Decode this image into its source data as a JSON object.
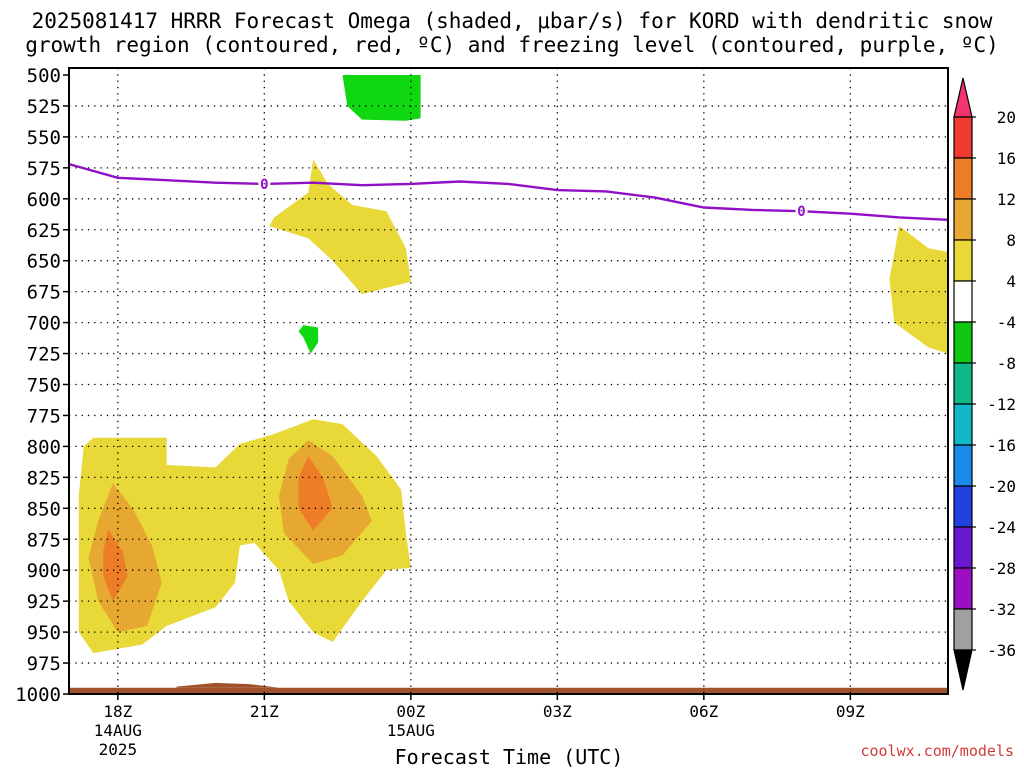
{
  "chart_data": {
    "type": "heatmap",
    "title_line1": "2025081417 HRRR Forecast Omega (shaded, μbar/s) for KORD with dendritic snow",
    "title_line2": "growth region (contoured, red, ºC) and freezing level (contoured, purple, ºC)",
    "xlabel": "Forecast Time (UTC)",
    "ylabel": "",
    "x_ticks": [
      {
        "label": "18Z",
        "sub1": "14AUG",
        "sub2": "2025",
        "hour": 18
      },
      {
        "label": "21Z",
        "sub1": "",
        "sub2": "",
        "hour": 21
      },
      {
        "label": "00Z",
        "sub1": "15AUG",
        "sub2": "",
        "hour": 24
      },
      {
        "label": "03Z",
        "sub1": "",
        "sub2": "",
        "hour": 27
      },
      {
        "label": "06Z",
        "sub1": "",
        "sub2": "",
        "hour": 30
      },
      {
        "label": "09Z",
        "sub1": "",
        "sub2": "",
        "hour": 33
      }
    ],
    "xlim_hours": [
      17,
      35
    ],
    "y_pressure_levels": [
      500,
      525,
      550,
      575,
      600,
      625,
      650,
      675,
      700,
      725,
      750,
      775,
      800,
      825,
      850,
      875,
      900,
      925,
      950,
      975,
      1000
    ],
    "ylim": [
      500,
      1000
    ],
    "grid": true,
    "colorbar": {
      "levels": [
        "20",
        "16",
        "12",
        "8",
        "4",
        "-4",
        "-8",
        "-12",
        "-16",
        "-20",
        "-24",
        "-28",
        "-32",
        "-36"
      ],
      "colors": [
        "#f4336f",
        "#f03a34",
        "#ee7d28",
        "#e6a830",
        "#e8d838",
        "#ffffff",
        "#10c810",
        "#10b888",
        "#10b8c8",
        "#1a8ae8",
        "#2040e0",
        "#6a18d0",
        "#9a10c0",
        "#a0a0a0",
        "#000000"
      ]
    },
    "freezing_level": {
      "label": "0",
      "color": "#9010c8",
      "points": [
        [
          17,
          572
        ],
        [
          18,
          583
        ],
        [
          19,
          585
        ],
        [
          20,
          587
        ],
        [
          21,
          588
        ],
        [
          22,
          587
        ],
        [
          23,
          589
        ],
        [
          24,
          588
        ],
        [
          25,
          586
        ],
        [
          26,
          588
        ],
        [
          27,
          593
        ],
        [
          28,
          594
        ],
        [
          29,
          599
        ],
        [
          30,
          607
        ],
        [
          31,
          609
        ],
        [
          32,
          610
        ],
        [
          33,
          612
        ],
        [
          34,
          615
        ],
        [
          35,
          617
        ]
      ],
      "label_positions": [
        [
          21,
          588
        ],
        [
          32,
          610
        ]
      ]
    },
    "shaded_regions": [
      {
        "name": "green-upper",
        "fill": "#10d810",
        "points": [
          [
            23.7,
            500
          ],
          [
            24.2,
            500
          ],
          [
            24.2,
            535
          ],
          [
            23.9,
            537
          ],
          [
            23.0,
            536
          ],
          [
            22.7,
            525
          ],
          [
            22.6,
            500
          ]
        ]
      },
      {
        "name": "yellow-mid",
        "fill": "#e8d838",
        "points": [
          [
            22.0,
            568
          ],
          [
            22.3,
            588
          ],
          [
            22.8,
            605
          ],
          [
            23.5,
            610
          ],
          [
            23.9,
            640
          ],
          [
            24.0,
            667
          ],
          [
            23.0,
            677
          ],
          [
            22.4,
            650
          ],
          [
            21.9,
            632
          ],
          [
            21.1,
            622
          ],
          [
            21.2,
            615
          ],
          [
            21.9,
            595
          ]
        ]
      },
      {
        "name": "green-small",
        "fill": "#10d810",
        "points": [
          [
            21.8,
            702
          ],
          [
            22.1,
            704
          ],
          [
            22.1,
            716
          ],
          [
            21.95,
            725
          ],
          [
            21.8,
            712
          ],
          [
            21.7,
            707
          ]
        ]
      },
      {
        "name": "yellow-right",
        "fill": "#e8d838",
        "points": [
          [
            34.0,
            622
          ],
          [
            34.6,
            640
          ],
          [
            35.0,
            643
          ],
          [
            35.0,
            725
          ],
          [
            34.6,
            720
          ],
          [
            33.9,
            700
          ],
          [
            33.8,
            665
          ]
        ]
      },
      {
        "name": "yellow-low",
        "fill": "#e8d838",
        "points": [
          [
            17.3,
            800
          ],
          [
            17.5,
            793
          ],
          [
            18.0,
            793
          ],
          [
            19.0,
            793
          ],
          [
            19.0,
            815
          ],
          [
            20.0,
            817
          ],
          [
            20.5,
            798
          ],
          [
            21.2,
            790
          ],
          [
            22.0,
            778
          ],
          [
            22.6,
            782
          ],
          [
            23.3,
            808
          ],
          [
            23.8,
            835
          ],
          [
            23.9,
            870
          ],
          [
            24.0,
            898
          ],
          [
            23.5,
            900
          ],
          [
            23.0,
            925
          ],
          [
            22.4,
            958
          ],
          [
            22.0,
            950
          ],
          [
            21.5,
            925
          ],
          [
            21.3,
            900
          ],
          [
            20.8,
            878
          ],
          [
            20.5,
            880
          ],
          [
            20.4,
            910
          ],
          [
            20.0,
            930
          ],
          [
            19.0,
            945
          ],
          [
            18.5,
            960
          ],
          [
            17.5,
            967
          ],
          [
            17.2,
            950
          ],
          [
            17.2,
            900
          ],
          [
            17.2,
            840
          ]
        ]
      },
      {
        "name": "orange-left",
        "fill": "#e6a830",
        "points": [
          [
            17.9,
            830
          ],
          [
            18.3,
            850
          ],
          [
            18.7,
            880
          ],
          [
            18.9,
            910
          ],
          [
            18.6,
            945
          ],
          [
            18.0,
            950
          ],
          [
            17.6,
            925
          ],
          [
            17.4,
            890
          ],
          [
            17.6,
            860
          ]
        ]
      },
      {
        "name": "orange-mid",
        "fill": "#e6a830",
        "points": [
          [
            21.9,
            795
          ],
          [
            22.4,
            808
          ],
          [
            23.0,
            840
          ],
          [
            23.2,
            860
          ],
          [
            22.6,
            888
          ],
          [
            22.0,
            895
          ],
          [
            21.4,
            870
          ],
          [
            21.3,
            840
          ],
          [
            21.5,
            810
          ]
        ]
      },
      {
        "name": "dark-orange-left",
        "fill": "#ee7d28",
        "points": [
          [
            17.8,
            867
          ],
          [
            18.1,
            885
          ],
          [
            18.2,
            905
          ],
          [
            17.9,
            925
          ],
          [
            17.7,
            905
          ],
          [
            17.7,
            885
          ]
        ]
      },
      {
        "name": "dark-orange-mid",
        "fill": "#ee7d28",
        "points": [
          [
            21.9,
            808
          ],
          [
            22.2,
            825
          ],
          [
            22.4,
            850
          ],
          [
            22.0,
            868
          ],
          [
            21.7,
            850
          ],
          [
            21.7,
            825
          ]
        ]
      },
      {
        "name": "surface-band",
        "fill": "#a0522d",
        "points": [
          [
            17,
            995
          ],
          [
            35,
            995
          ],
          [
            35,
            1000
          ],
          [
            17,
            1000
          ]
        ]
      },
      {
        "name": "surface-bump",
        "fill": "#a0522d",
        "points": [
          [
            19.2,
            994
          ],
          [
            20.0,
            991
          ],
          [
            20.7,
            992
          ],
          [
            21.3,
            995
          ],
          [
            19.2,
            995
          ]
        ]
      }
    ]
  },
  "credit": "coolwx.com/models"
}
